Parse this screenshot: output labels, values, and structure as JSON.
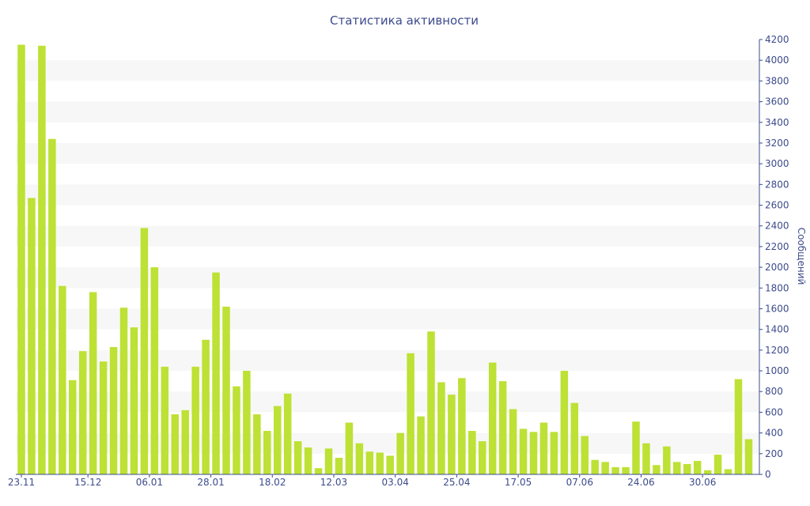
{
  "chart_data": {
    "type": "bar",
    "title": "Статистика активности",
    "ylabel": "Сообщений",
    "y_axis_side": "right",
    "ylim": [
      0,
      4200
    ],
    "yticks": [
      0,
      200,
      400,
      600,
      800,
      1000,
      1200,
      1400,
      1600,
      1800,
      2000,
      2200,
      2400,
      2600,
      2800,
      3000,
      3200,
      3400,
      3600,
      3800,
      4000,
      4200
    ],
    "x_tick_labels": [
      {
        "label": "23.11",
        "bar": 0
      },
      {
        "label": "15.12",
        "bar": 6.5
      },
      {
        "label": "06.01",
        "bar": 12.5
      },
      {
        "label": "28.01",
        "bar": 18.5
      },
      {
        "label": "18.02",
        "bar": 24.5
      },
      {
        "label": "12.03",
        "bar": 30.5
      },
      {
        "label": "03.04",
        "bar": 36.5
      },
      {
        "label": "25.04",
        "bar": 42.5
      },
      {
        "label": "17.05",
        "bar": 48.5
      },
      {
        "label": "07.06",
        "bar": 54.5
      },
      {
        "label": "24.06",
        "bar": 60.5
      },
      {
        "label": "30.06",
        "bar": 66.5
      }
    ],
    "grid": "alternating horizontal bands",
    "bar_color": "#bde134",
    "band_color": "#f7f7f7",
    "axis_color": "#3c4b8c",
    "values": [
      4150,
      2670,
      4140,
      3240,
      1820,
      910,
      1190,
      1760,
      1090,
      1230,
      1610,
      1420,
      2380,
      2000,
      1040,
      580,
      620,
      1040,
      1300,
      1950,
      1620,
      850,
      1000,
      580,
      420,
      660,
      780,
      320,
      260,
      60,
      250,
      160,
      500,
      300,
      220,
      210,
      180,
      400,
      1170,
      560,
      1380,
      890,
      770,
      930,
      420,
      320,
      1080,
      900,
      630,
      440,
      410,
      500,
      410,
      1000,
      690,
      370,
      140,
      120,
      70,
      70,
      510,
      300,
      90,
      270,
      120,
      100,
      130,
      40,
      190,
      50,
      920,
      340
    ]
  }
}
